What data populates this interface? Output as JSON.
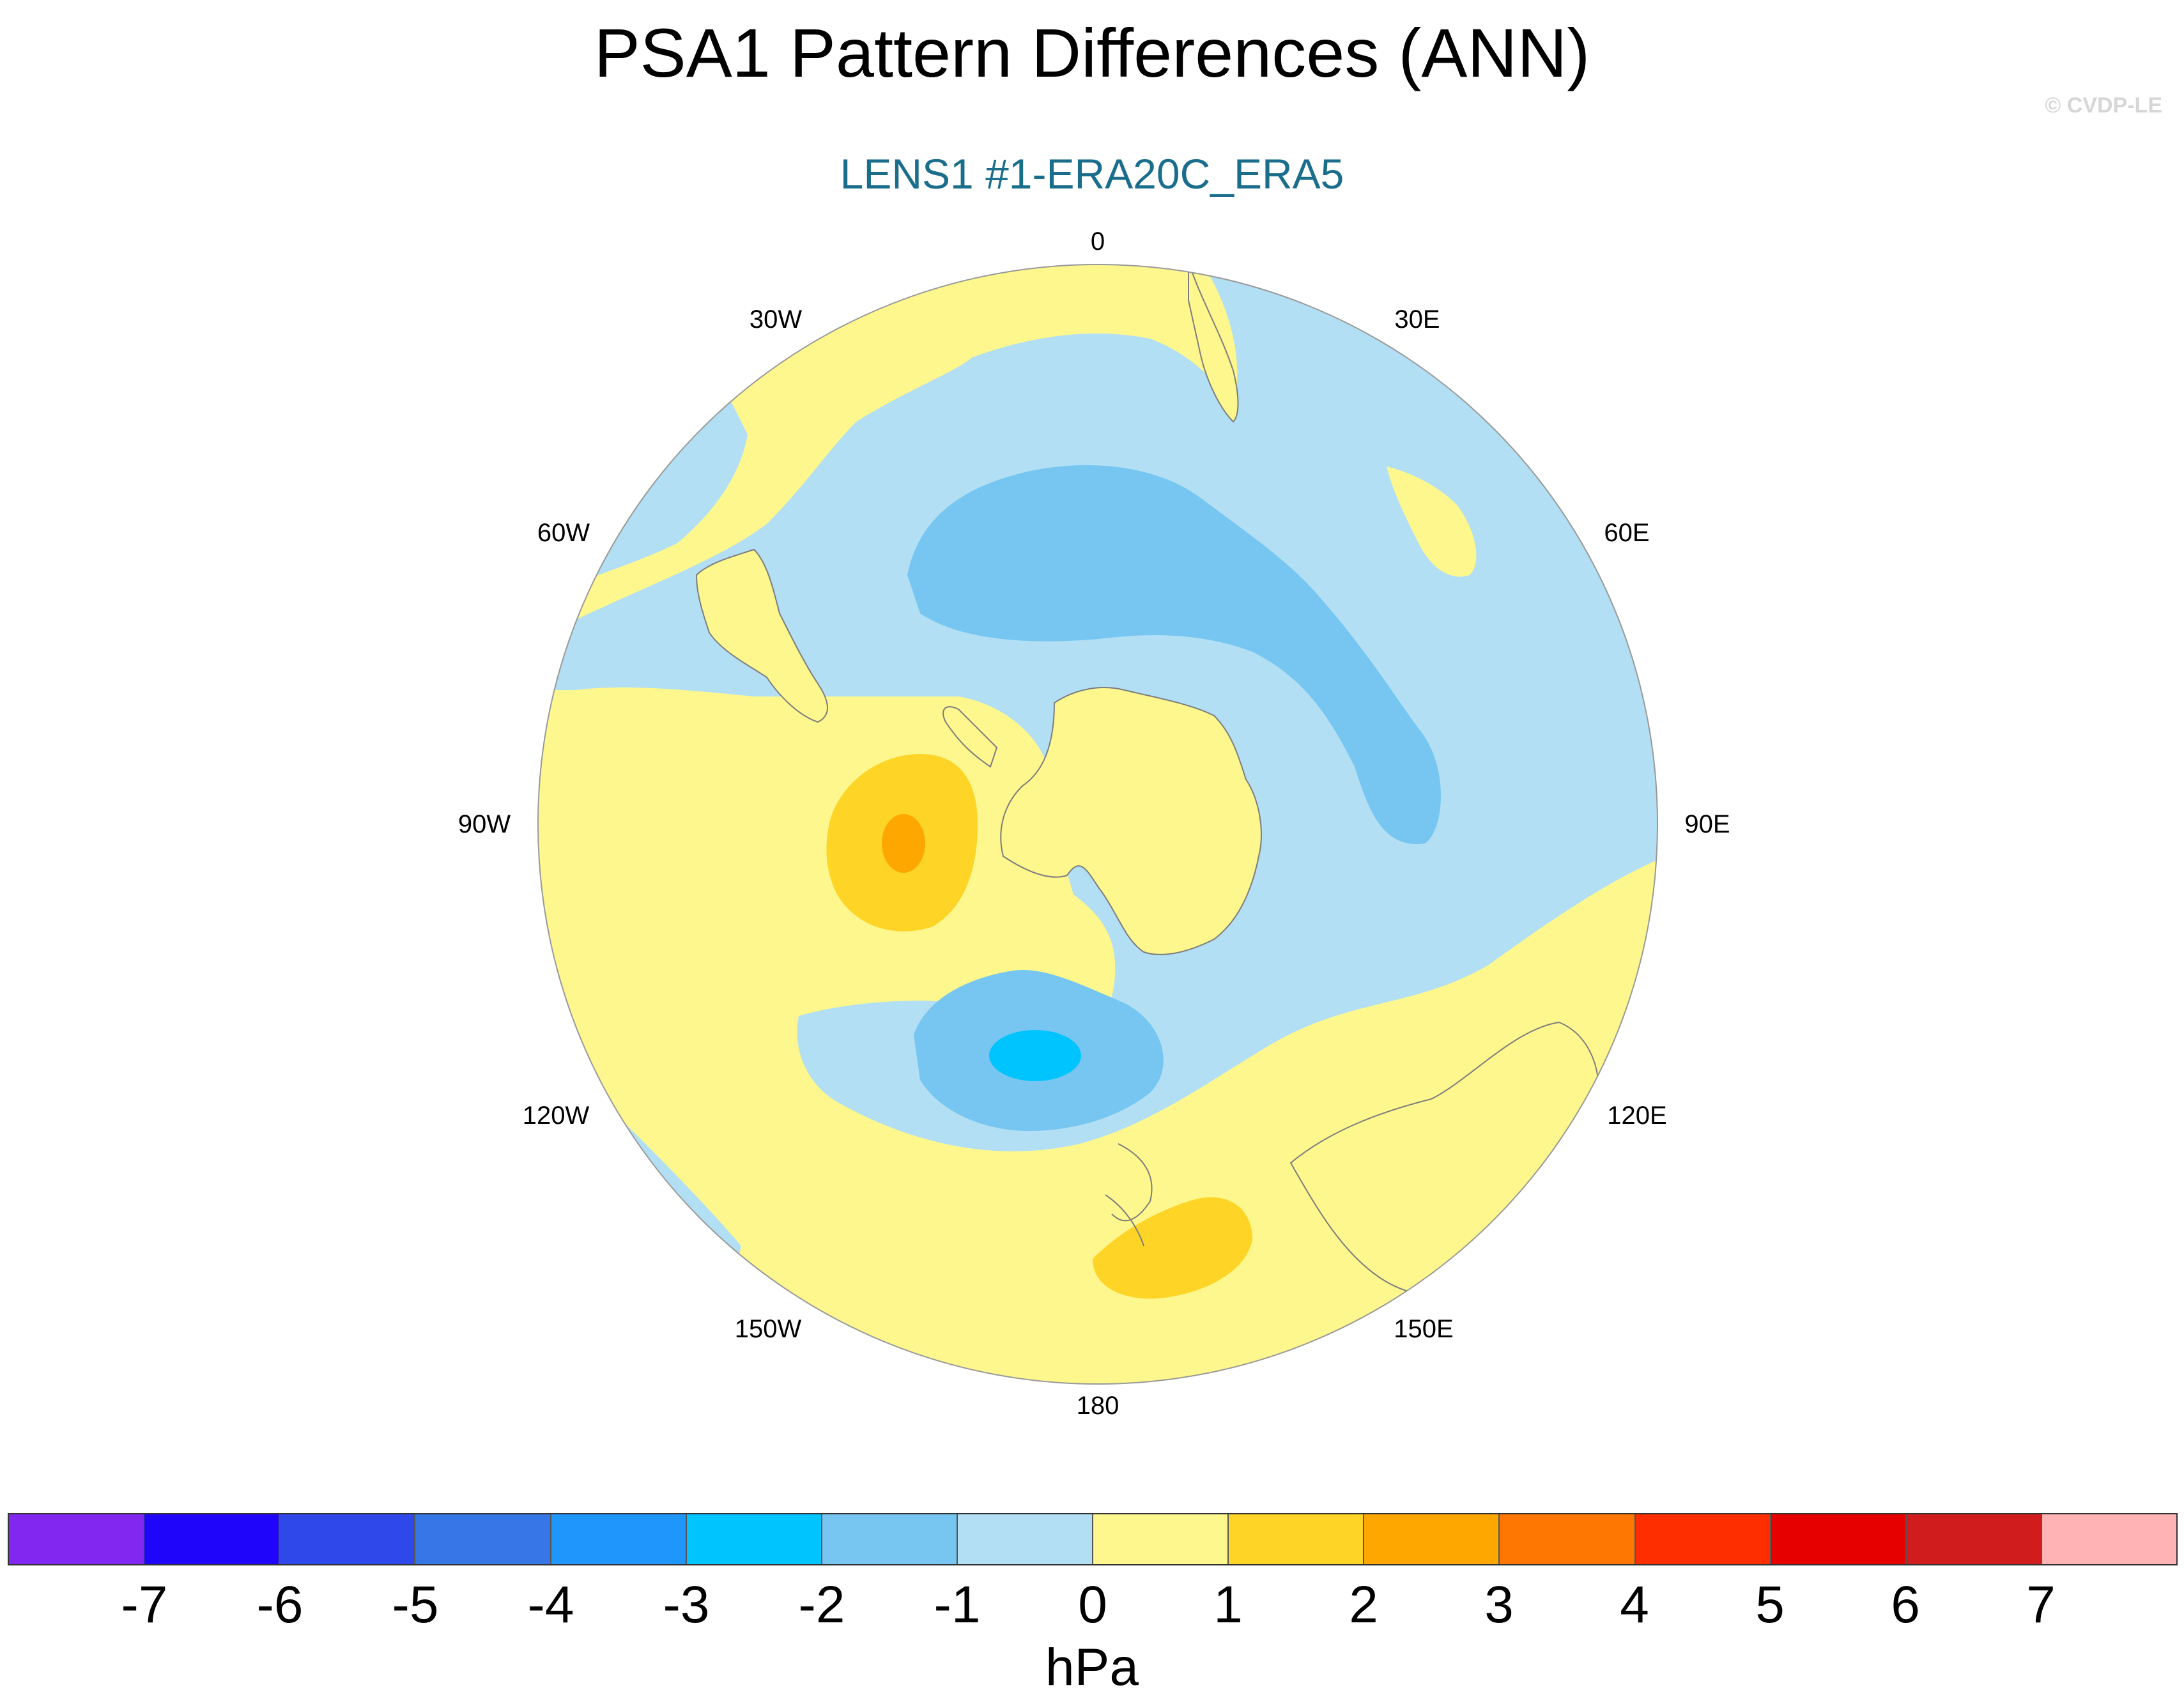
{
  "title": "PSA1 Pattern Differences (ANN)",
  "subtitle": "LENS1 #1-ERA20C_ERA5",
  "credit": "© CVDP-LE",
  "map": {
    "projection": "south-polar-stereographic",
    "longitude_labels": [
      "0",
      "30E",
      "60E",
      "90E",
      "120E",
      "150E",
      "180",
      "150W",
      "120W",
      "90W",
      "60W",
      "30W"
    ]
  },
  "colorbar": {
    "units": "hPa",
    "tick_labels": [
      "-7",
      "-6",
      "-5",
      "-4",
      "-3",
      "-2",
      "-1",
      "0",
      "1",
      "2",
      "3",
      "4",
      "5",
      "6",
      "7"
    ],
    "colors": [
      "#8127f0",
      "#1f06fb",
      "#2f48ea",
      "#3676e6",
      "#1f96fc",
      "#00c4fe",
      "#76c6f1",
      "#b2dff3",
      "#fef78d",
      "#fed427",
      "#fea700",
      "#fe7702",
      "#fe2e00",
      "#e70000",
      "#d01c1c",
      "#ffb3b4"
    ]
  }
}
